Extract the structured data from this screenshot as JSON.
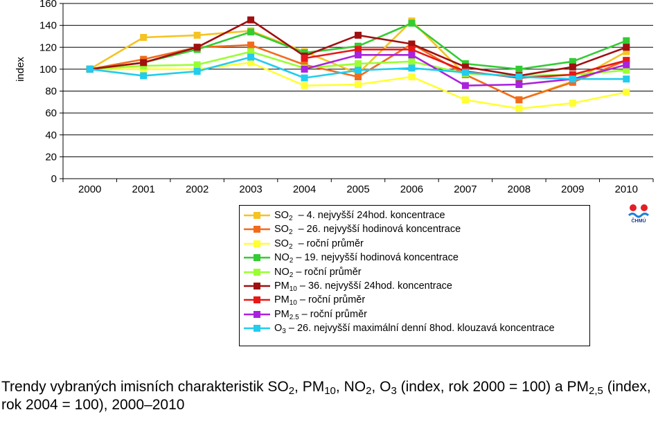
{
  "chart_data": {
    "type": "line",
    "ylabel": "index",
    "ylim": [
      0,
      160
    ],
    "yticks": [
      "0",
      "20",
      "40",
      "60",
      "80",
      "100",
      "120",
      "140",
      "160"
    ],
    "categories": [
      "2000",
      "2001",
      "2002",
      "2003",
      "2004",
      "2005",
      "2006",
      "2007",
      "2008",
      "2009",
      "2010"
    ],
    "grid": "horizontal",
    "series": [
      {
        "name": "SO2 – 4. nejvyšší 24hod. koncentrace",
        "color": "#F5C322",
        "values": [
          100,
          129,
          131,
          135,
          116,
          96,
          144,
          95,
          72,
          89,
          116
        ]
      },
      {
        "name": "SO2 – 26. nejvyšší hodinová koncentrace",
        "color": "#F26B1D",
        "values": [
          100,
          109,
          120,
          122,
          104,
          93,
          123,
          95,
          72,
          88,
          108
        ]
      },
      {
        "name": "SO2 – roční průměr",
        "color": "#FFFF33",
        "values": [
          100,
          100,
          100,
          106,
          85,
          86,
          93,
          72,
          64,
          69,
          79
        ]
      },
      {
        "name": "NO2 – 19. nejvyšší hodinová koncentrace",
        "color": "#33CC33",
        "values": [
          100,
          106,
          118,
          134,
          115,
          121,
          142,
          105,
          100,
          107,
          126
        ]
      },
      {
        "name": "NO2 – roční průměr",
        "color": "#99FF33",
        "values": [
          100,
          103,
          104,
          116,
          101,
          105,
          107,
          96,
          94,
          95,
          99
        ]
      },
      {
        "name": "PM10 – 36. nejvyšší 24hod. koncentrace",
        "color": "#A01010",
        "values": [
          100,
          106,
          120,
          145,
          112,
          131,
          123,
          102,
          94,
          102,
          120
        ]
      },
      {
        "name": "PM10 – roční průměr",
        "color": "#E81818",
        "values": [
          null,
          null,
          null,
          null,
          110,
          118,
          118,
          98,
          92,
          95,
          108
        ]
      },
      {
        "name": "PM2.5 – roční průměr",
        "color": "#AA22DD",
        "values": [
          null,
          null,
          null,
          null,
          100,
          113,
          113,
          85,
          86,
          91,
          104
        ]
      },
      {
        "name": "O3 – 26. nejvyšší maximální denní 8hod. klouzavá koncentrace",
        "color": "#22CCEE",
        "values": [
          100,
          94,
          98,
          111,
          92,
          99,
          101,
          97,
          93,
          91,
          91
        ]
      }
    ]
  },
  "legend": [
    {
      "pre": "SO",
      "sub": "2",
      "post": "  – 4. nejvyšší 24hod. koncentrace"
    },
    {
      "pre": "SO",
      "sub": "2",
      "post": "  – 26. nejvyšší hodinová koncentrace"
    },
    {
      "pre": "SO",
      "sub": "2",
      "post": "  – roční průměr"
    },
    {
      "pre": "NO",
      "sub": "2",
      "post": " – 19. nejvyšší hodinová koncentrace"
    },
    {
      "pre": "NO",
      "sub": "2",
      "post": " – roční průměr"
    },
    {
      "pre": "PM",
      "sub": "10",
      "post": " – 36. nejvyšší 24hod. koncentrace"
    },
    {
      "pre": "PM",
      "sub": "10",
      "post": " – roční průměr"
    },
    {
      "pre": "PM",
      "sub": "2.5",
      "post": " – roční průměr"
    },
    {
      "pre": "O",
      "sub": "3",
      "post": " – 26. nejvyšší maximální denní 8hod. klouzavá koncentrace"
    }
  ],
  "logo": {
    "text": "ČHMÚ",
    "icon": "chmu-logo-icon"
  },
  "caption": {
    "t1": "Trendy vybraných imisních charakteristik SO",
    "s1": "2",
    "t2": ", PM",
    "s2": "10",
    "t3": ", NO",
    "s3": "2",
    "t4": ", O",
    "s4": "3",
    "t5": " (index, rok 2000 = 100) a PM",
    "s5": "2,5",
    "t6": " (index, rok 2004 = 100), 2000–2010"
  }
}
